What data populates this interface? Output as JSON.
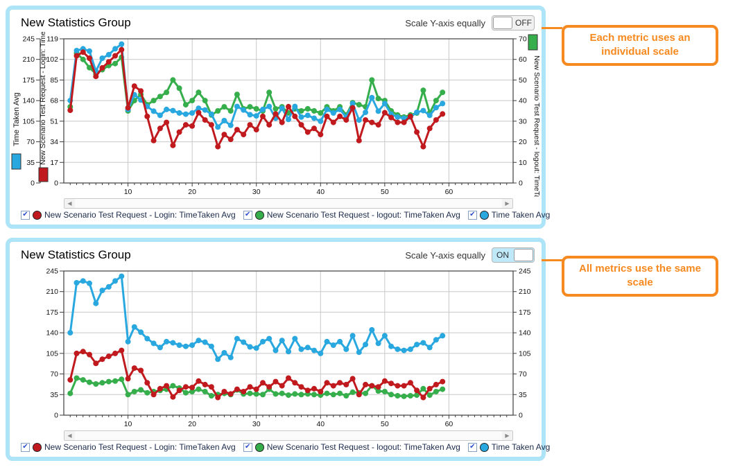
{
  "legend": {
    "items": [
      {
        "label": "New Scenario Test Request - Login: TimeTaken Avg",
        "color": "#c01a1f"
      },
      {
        "label": "New Scenario Test Request - logout: TimeTaken Avg",
        "color": "#35ae4b"
      },
      {
        "label": "Time Taken Avg",
        "color": "#29a8e0"
      }
    ]
  },
  "panels": [
    {
      "title": "New Statistics Group",
      "toggle_label": "Scale Y-axis equally",
      "toggle_state": "OFF",
      "callout": "Each metric uses an individual scale",
      "left_outer_axis": {
        "label": "Time Taken Avg",
        "swatch_color": "#29a8e0",
        "ticks": [
          245,
          210,
          175,
          140,
          105,
          70,
          35,
          0
        ]
      },
      "left_inner_axis": {
        "label": "New Scenario Test Request - Login: Time",
        "swatch_color": "#c01a1f",
        "ticks": [
          119,
          102,
          85,
          68,
          51,
          34,
          17,
          0
        ]
      },
      "right_axis": {
        "label": "New Scenario Test Request - logout: TimeTaker",
        "swatch_color": "#35ae4b",
        "ticks": [
          70,
          60,
          50,
          40,
          30,
          20,
          10,
          0
        ]
      }
    },
    {
      "title": "New Statistics Group",
      "toggle_label": "Scale Y-axis equally",
      "toggle_state": "ON",
      "callout": "All metrics use the same scale",
      "left_axis": {
        "ticks": [
          245,
          210,
          175,
          140,
          105,
          70,
          35,
          0
        ]
      },
      "right_axis": {
        "ticks": [
          245,
          210,
          175,
          140,
          105,
          70,
          35,
          0
        ]
      }
    }
  ],
  "chart_data": {
    "type": "line",
    "title": "New Statistics Group",
    "x_ticks": [
      10,
      20,
      30,
      40,
      50,
      60
    ],
    "x_range": [
      0,
      70
    ],
    "grid": true,
    "x": [
      1,
      2,
      3,
      4,
      5,
      6,
      7,
      8,
      9,
      10,
      11,
      12,
      13,
      14,
      15,
      16,
      17,
      18,
      19,
      20,
      21,
      22,
      23,
      24,
      25,
      26,
      27,
      28,
      29,
      30,
      31,
      32,
      33,
      34,
      35,
      36,
      37,
      38,
      39,
      40,
      41,
      42,
      43,
      44,
      45,
      46,
      47,
      48,
      49,
      50,
      51,
      52,
      53,
      54,
      55,
      56,
      57,
      58,
      59
    ],
    "series": [
      {
        "name": "New Scenario Test Request - Login: TimeTaken Avg",
        "color": "#c01a1f",
        "values": [
          60,
          105,
          108,
          103,
          88,
          95,
          100,
          105,
          110,
          62,
          80,
          76,
          55,
          35,
          45,
          50,
          31,
          42,
          48,
          47,
          58,
          52,
          48,
          30,
          40,
          36,
          44,
          40,
          48,
          44,
          55,
          48,
          57,
          50,
          63,
          55,
          48,
          42,
          45,
          40,
          55,
          50,
          55,
          52,
          62,
          35,
          52,
          50,
          48,
          58,
          54,
          50,
          50,
          55,
          42,
          30,
          45,
          52,
          57
        ]
      },
      {
        "name": "New Scenario Test Request - logout: TimeTaken Avg",
        "color": "#35ae4b",
        "values": [
          37,
          63,
          60,
          56,
          53,
          55,
          57,
          58,
          61,
          35,
          40,
          43,
          38,
          40,
          42,
          44,
          50,
          46,
          38,
          40,
          44,
          40,
          33,
          35,
          37,
          35,
          43,
          36,
          37,
          36,
          35,
          44,
          36,
          37,
          34,
          36,
          35,
          36,
          35,
          34,
          37,
          35,
          37,
          33,
          39,
          38,
          37,
          50,
          41,
          40,
          35,
          33,
          32,
          33,
          34,
          45,
          34,
          40,
          44
        ]
      },
      {
        "name": "Time Taken Avg",
        "color": "#29a8e0",
        "values": [
          140,
          225,
          228,
          224,
          190,
          212,
          218,
          228,
          236,
          125,
          150,
          141,
          130,
          122,
          115,
          125,
          123,
          119,
          117,
          119,
          127,
          124,
          117,
          95,
          106,
          98,
          130,
          124,
          116,
          114,
          125,
          130,
          110,
          127,
          108,
          130,
          112,
          115,
          110,
          105,
          125,
          119,
          125,
          112,
          135,
          107,
          120,
          145,
          122,
          135,
          117,
          112,
          110,
          112,
          120,
          123,
          115,
          128,
          135
        ]
      }
    ],
    "rendering": [
      {
        "panel": "top",
        "scale_y_axis_equally": "OFF",
        "per_series_y_range": {
          "New Scenario Test Request - Login: TimeTaken Avg": [
            0,
            119
          ],
          "New Scenario Test Request - logout: TimeTaken Avg": [
            0,
            70
          ],
          "Time Taken Avg": [
            0,
            245
          ]
        }
      },
      {
        "panel": "bottom",
        "scale_y_axis_equally": "ON",
        "common_y_range": [
          0,
          245
        ]
      }
    ]
  }
}
